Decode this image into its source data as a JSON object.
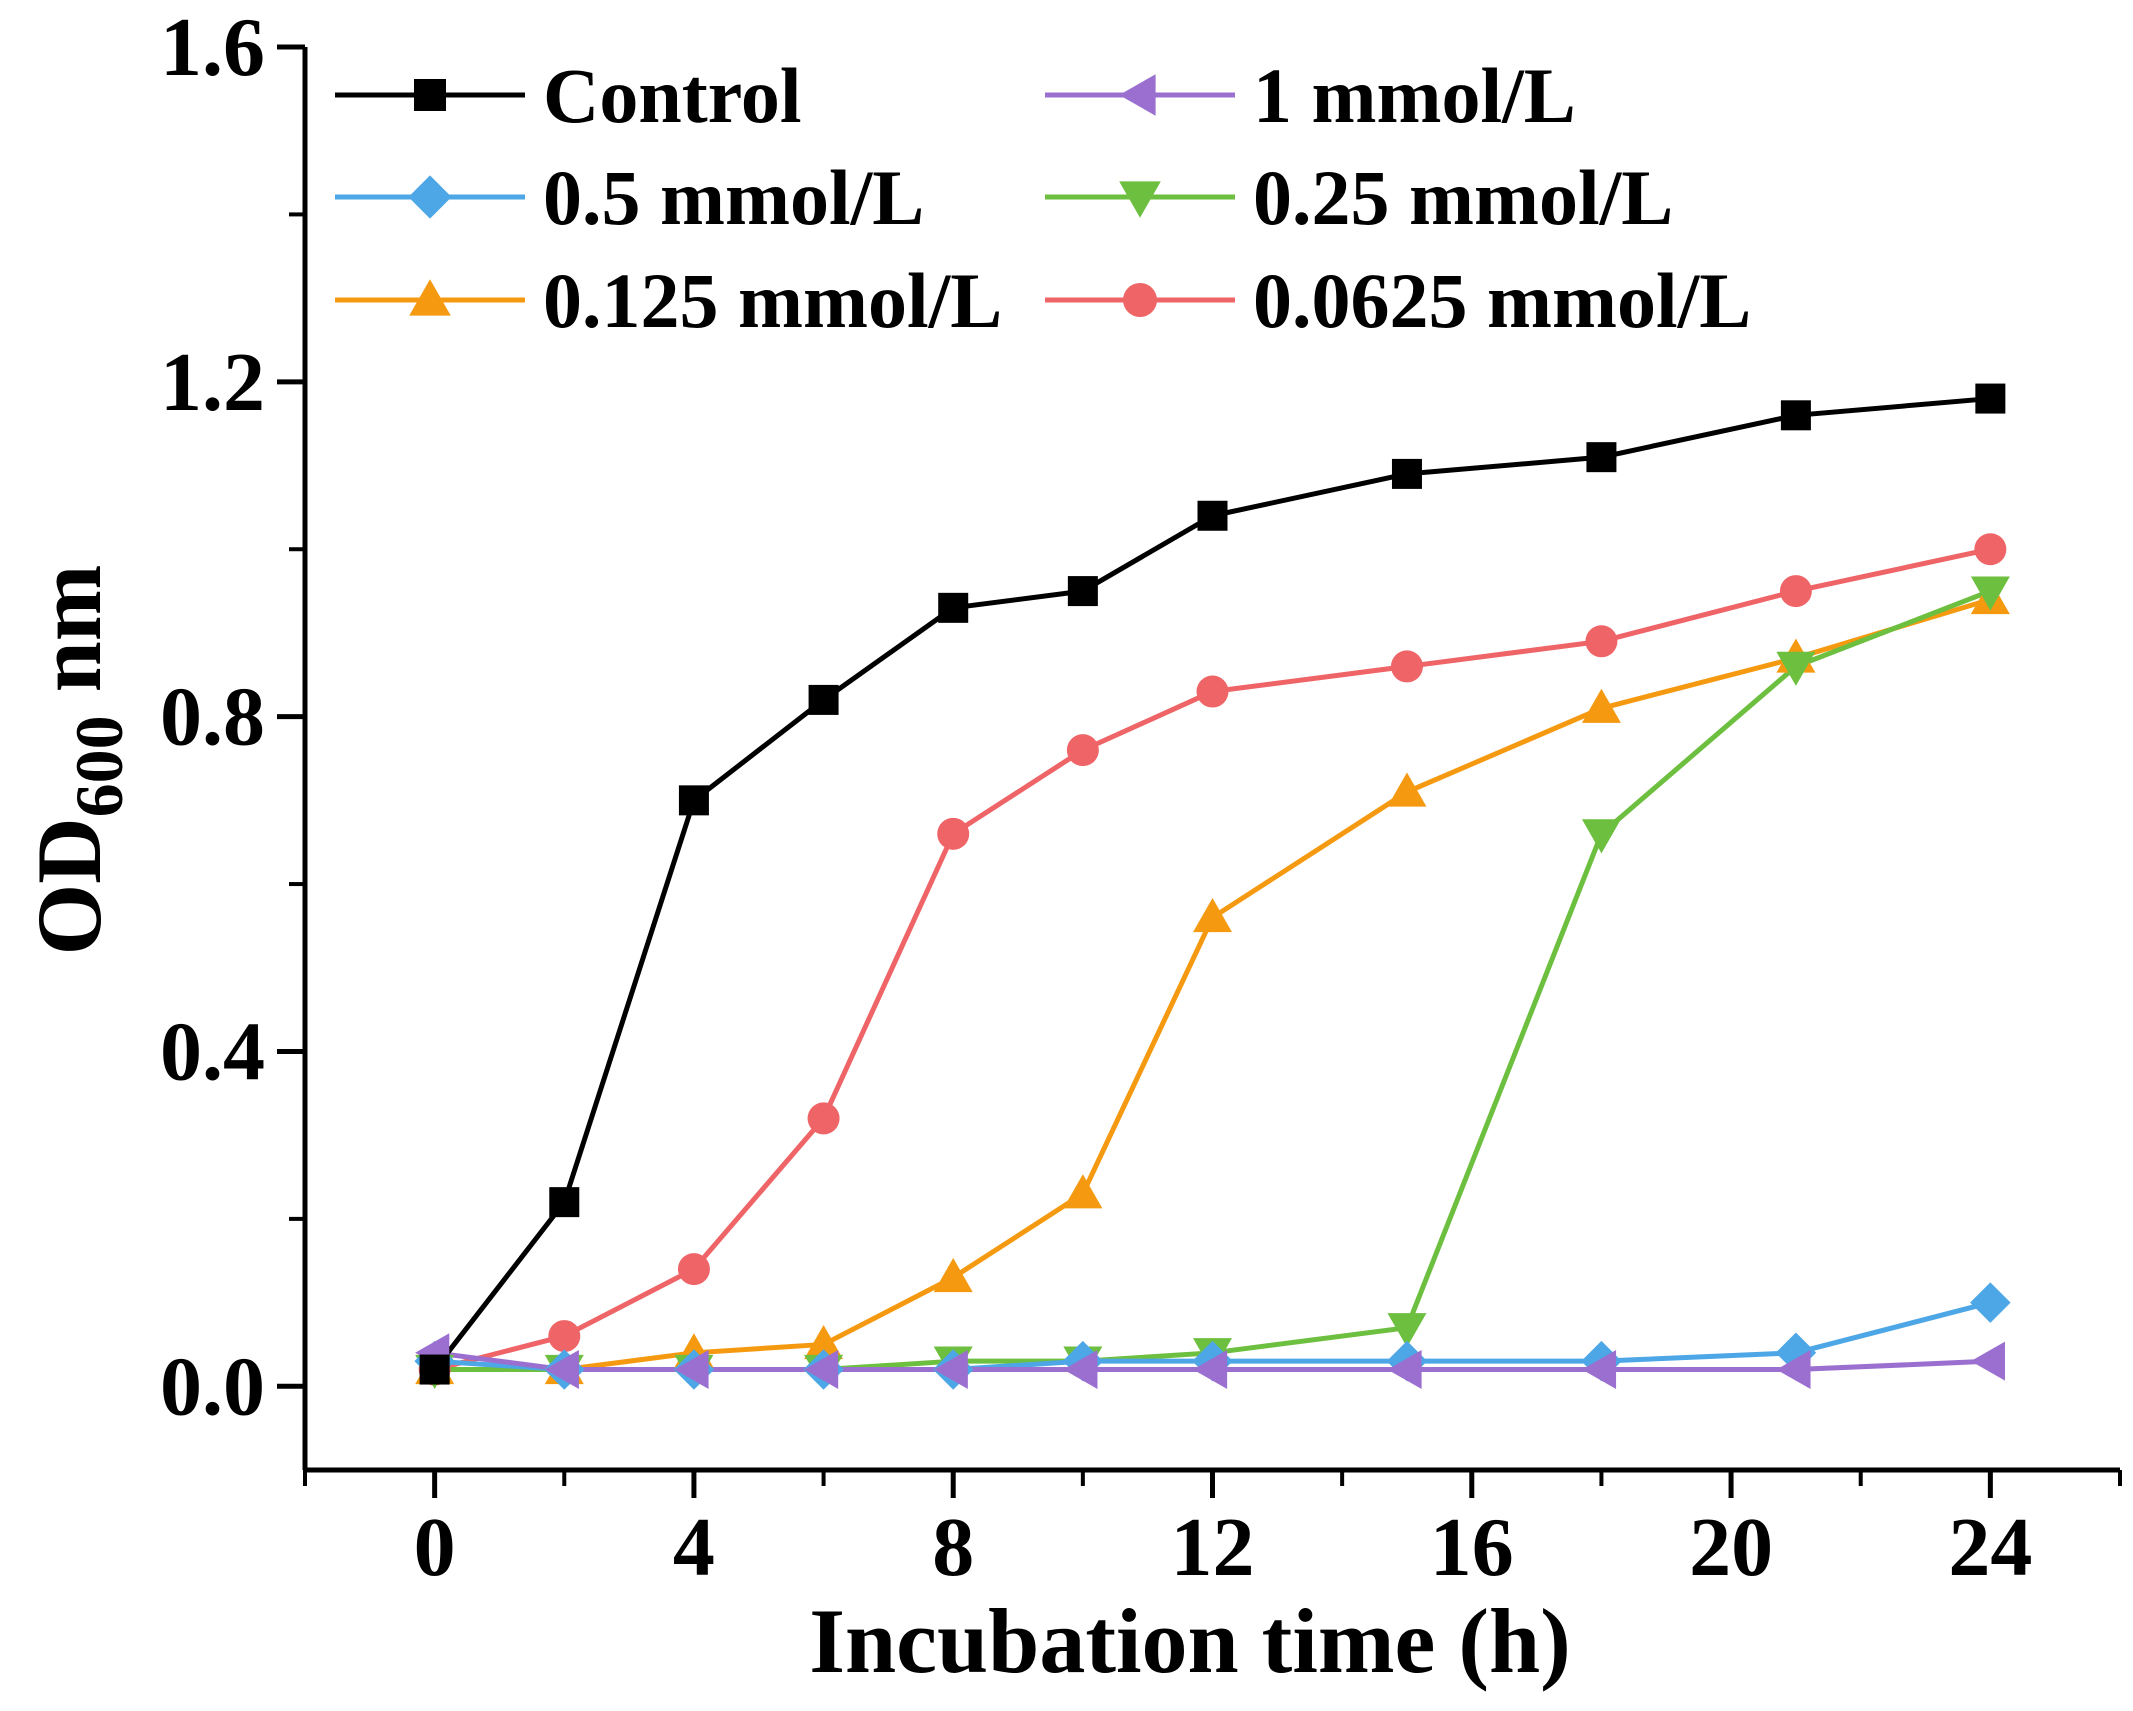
{
  "chart_data": {
    "type": "line",
    "title": "",
    "xlabel": "Incubation time (h)",
    "ylabel": {
      "main": "OD",
      "sub": "600",
      "suffix": " nm"
    },
    "xlim": [
      -2,
      26
    ],
    "ylim": [
      -0.1,
      1.6
    ],
    "xticks": [
      0,
      4,
      8,
      12,
      16,
      20,
      24
    ],
    "xtick_labels": [
      "0",
      "4",
      "8",
      "12",
      "16",
      "20",
      "24"
    ],
    "yticks": [
      0.0,
      0.4,
      0.8,
      1.2,
      1.6
    ],
    "ytick_labels": [
      "0.0",
      "0.4",
      "0.8",
      "1.2",
      "1.6"
    ],
    "grid": false,
    "legend_position": "top-left",
    "x": [
      0,
      2,
      4,
      6,
      8,
      10,
      12,
      15,
      18,
      21,
      24
    ],
    "series": [
      {
        "name": "Control",
        "color": "#000000",
        "marker": "square",
        "values": [
          0.02,
          0.22,
          0.7,
          0.82,
          0.93,
          0.95,
          1.04,
          1.09,
          1.11,
          1.16,
          1.18
        ]
      },
      {
        "name": "1 mmol/L",
        "color": "#9a6fcf",
        "marker": "triangle-left",
        "values": [
          0.04,
          0.02,
          0.02,
          0.02,
          0.02,
          0.02,
          0.02,
          0.02,
          0.02,
          0.02,
          0.03
        ]
      },
      {
        "name": "0.5 mmol/L",
        "color": "#4da6e6",
        "marker": "diamond",
        "values": [
          0.03,
          0.02,
          0.02,
          0.02,
          0.02,
          0.03,
          0.03,
          0.03,
          0.03,
          0.04,
          0.1
        ]
      },
      {
        "name": "0.25 mmol/L",
        "color": "#6dbf3f",
        "marker": "triangle-down",
        "values": [
          0.02,
          0.02,
          0.02,
          0.02,
          0.03,
          0.03,
          0.04,
          0.07,
          0.66,
          0.86,
          0.95
        ]
      },
      {
        "name": "0.125 mmol/L",
        "color": "#f59a10",
        "marker": "triangle-up",
        "values": [
          0.02,
          0.02,
          0.04,
          0.05,
          0.13,
          0.23,
          0.56,
          0.71,
          0.81,
          0.87,
          0.94
        ]
      },
      {
        "name": "0.0625 mmol/L",
        "color": "#ee6467",
        "marker": "circle",
        "values": [
          0.02,
          0.06,
          0.14,
          0.32,
          0.66,
          0.76,
          0.83,
          0.86,
          0.89,
          0.95,
          1.0
        ]
      }
    ]
  }
}
